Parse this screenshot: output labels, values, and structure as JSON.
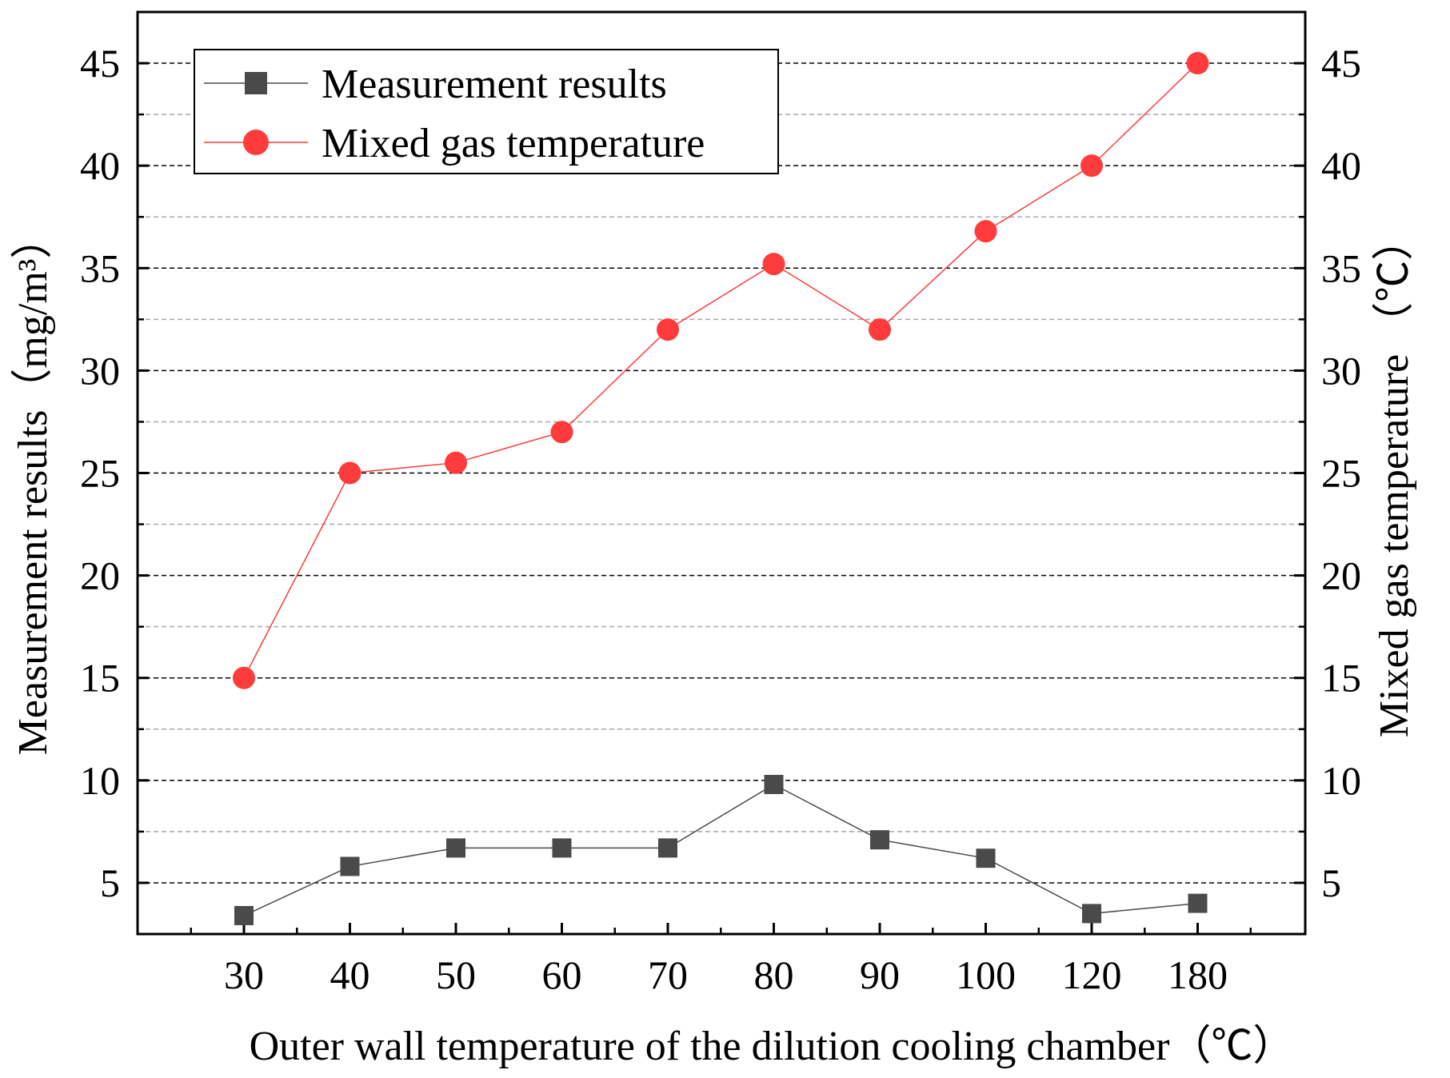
{
  "chart_data": {
    "type": "line",
    "categories": [
      "30",
      "40",
      "50",
      "60",
      "70",
      "80",
      "90",
      "100",
      "120",
      "180"
    ],
    "series": [
      {
        "name": "Measurement results",
        "axis": "left",
        "color": "#4a4a4a",
        "marker": "square",
        "values": [
          3.4,
          5.8,
          6.7,
          6.7,
          6.7,
          9.8,
          7.1,
          6.2,
          3.5,
          4.0
        ]
      },
      {
        "name": "Mixed gas temperature",
        "axis": "right",
        "color": "#ff3b3b",
        "marker": "circle",
        "values": [
          15,
          25,
          25.5,
          27,
          32,
          35.2,
          32,
          36.8,
          40,
          45
        ]
      }
    ],
    "xlabel": "Outer wall temperature of the dilution cooling chamber（℃）",
    "ylabel_left": "Measurement results（mg/m³）",
    "ylabel_right": "Mixed gas temperature （℃）",
    "ylim": [
      2.5,
      47.5
    ],
    "yticks": [
      5,
      10,
      15,
      20,
      25,
      30,
      35,
      40,
      45
    ],
    "minor_grid": [
      7.5,
      12.5,
      17.5,
      22.5,
      27.5,
      32.5,
      37.5,
      42.5
    ],
    "legend_position": "top-left",
    "grid": true
  }
}
